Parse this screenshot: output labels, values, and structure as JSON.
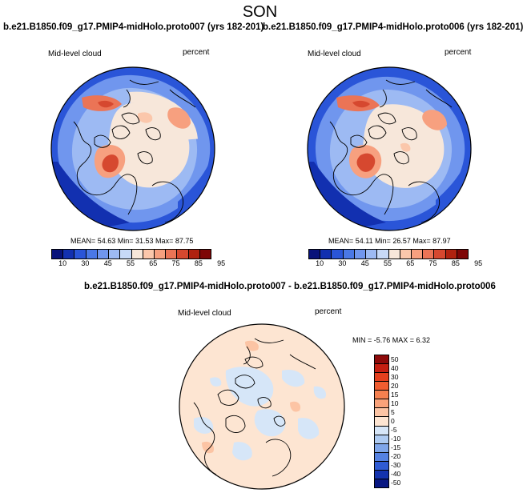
{
  "main_title": "SON",
  "panels": [
    {
      "title": "b.e21.B1850.f09_g17.PMIP4-midHolo.proto007 (yrs 182-201)",
      "variable": "Mid-level cloud",
      "units": "percent",
      "stats": "MEAN= 54.63  Min= 31.53  Max= 87.75"
    },
    {
      "title": "b.e21.B1850.f09_g17.PMIP4-midHolo.proto006 (yrs 182-201)",
      "variable": "Mid-level cloud",
      "units": "percent",
      "stats": "MEAN= 54.11  Min= 26.57  Max= 87.97"
    },
    {
      "title": "b.e21.B1850.f09_g17.PMIP4-midHolo.proto007 - b.e21.B1850.f09_g17.PMIP4-midHolo.proto006",
      "variable": "Mid-level cloud",
      "units": "percent",
      "stats": "MIN =  -5.76 MAX =   6.32"
    }
  ],
  "colorbar_abs": {
    "labels": [
      "10",
      "30",
      "45",
      "55",
      "65",
      "75",
      "85",
      "95"
    ],
    "colors": [
      "#08127a",
      "#1230b0",
      "#2a55d8",
      "#4a78e6",
      "#7096ee",
      "#9dbaf3",
      "#c7d9f7",
      "#f7e7da",
      "#fbc7ab",
      "#f7a07f",
      "#eb7456",
      "#d6482f",
      "#b0220f",
      "#7e0606"
    ]
  },
  "colorbar_diff": {
    "labels": [
      "50",
      "40",
      "30",
      "20",
      "15",
      "10",
      "5",
      "0",
      "-5",
      "-10",
      "-15",
      "-20",
      "-30",
      "-40",
      "-50"
    ],
    "colors": [
      "#8e0a0a",
      "#c51f12",
      "#e4401e",
      "#f05d30",
      "#f5804f",
      "#f9a27a",
      "#fcc4a4",
      "#fde5d2",
      "#d6e6f8",
      "#aecbf2",
      "#7fa6ea",
      "#5582e2",
      "#2f5bd4",
      "#1433ae",
      "#081782"
    ]
  }
}
